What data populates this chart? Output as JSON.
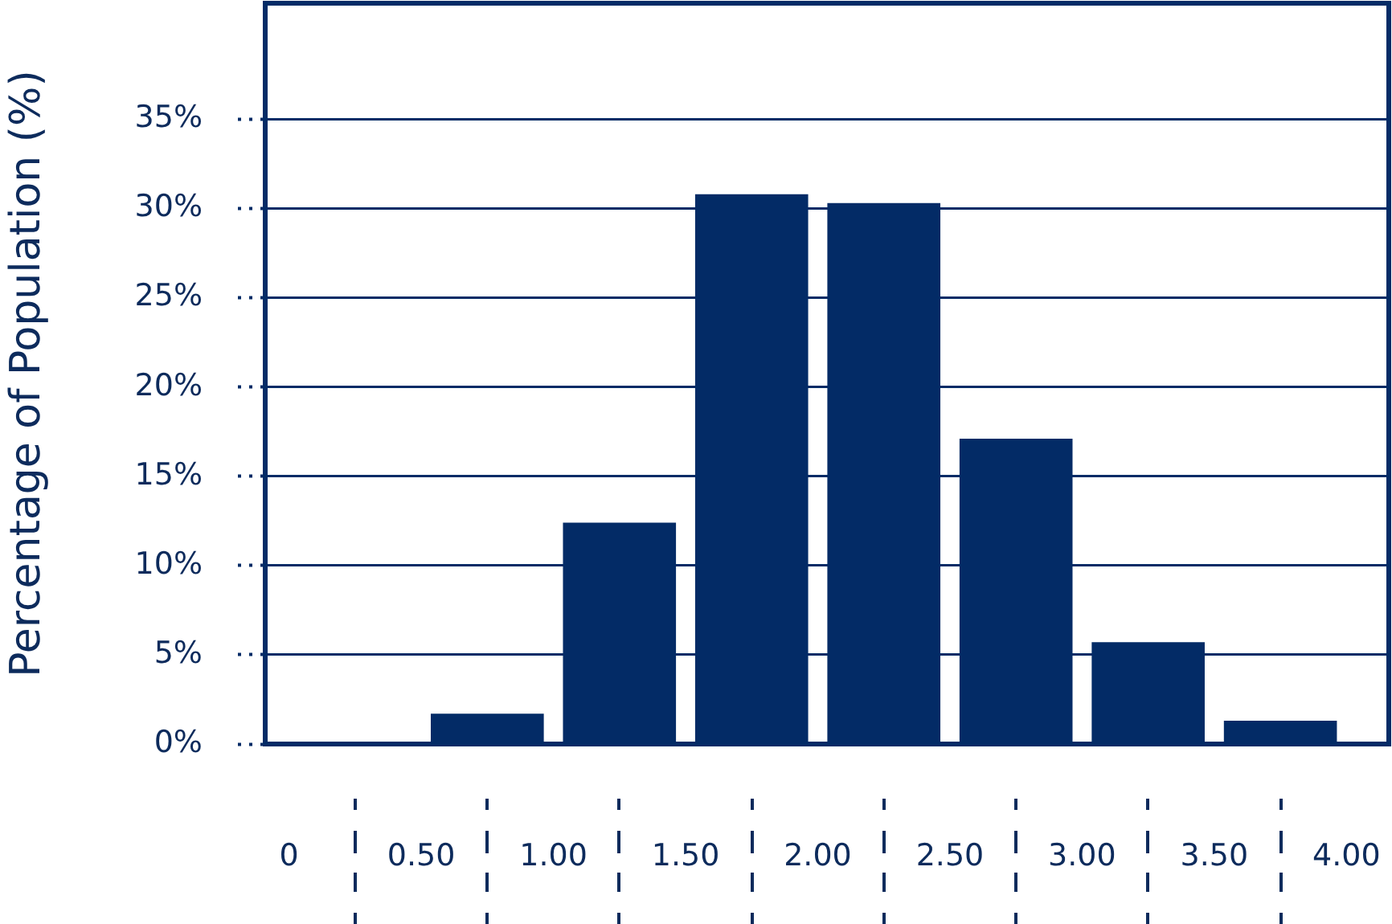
{
  "chart_data": {
    "type": "histogram",
    "ylabel": "Percentage of Population (%)",
    "bins": [
      0,
      0.5,
      1,
      1.5,
      2,
      2.5,
      3,
      3.5,
      4
    ],
    "values": [
      0,
      1.7,
      12.4,
      30.8,
      30.3,
      17.1,
      5.7,
      1.3
    ],
    "color": "#032b66",
    "xlim": [
      -0.09,
      4.16
    ],
    "xticks": [
      {
        "value": 0,
        "label": "0"
      },
      {
        "value": 0.5,
        "label": "0.50"
      },
      {
        "value": 1,
        "label": "1.00"
      },
      {
        "value": 1.5,
        "label": "1.50"
      },
      {
        "value": 2,
        "label": "2.00"
      },
      {
        "value": 2.5,
        "label": "2.50"
      },
      {
        "value": 3,
        "label": "3.00"
      },
      {
        "value": 3.5,
        "label": "3.50"
      },
      {
        "value": 4,
        "label": "4.00"
      }
    ],
    "ylim": [
      0,
      41.5
    ],
    "yticks": [
      {
        "value": 0,
        "label": "0%"
      },
      {
        "value": 5,
        "label": "5%"
      },
      {
        "value": 10,
        "label": "10%"
      },
      {
        "value": 15,
        "label": "15%"
      },
      {
        "value": 20,
        "label": "20%"
      },
      {
        "value": 25,
        "label": "25%"
      },
      {
        "value": 30,
        "label": "30%"
      },
      {
        "value": 35,
        "label": "35%"
      }
    ],
    "grid": "y"
  }
}
